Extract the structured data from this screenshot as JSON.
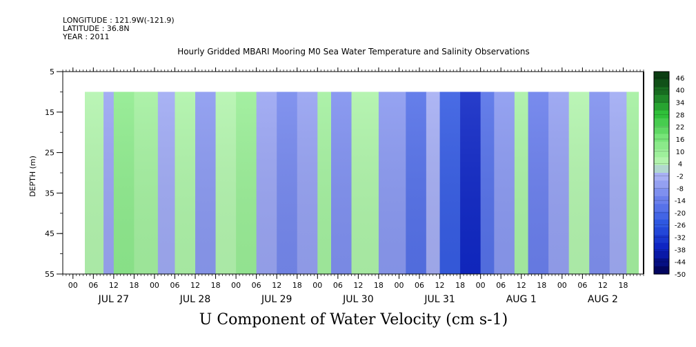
{
  "header": {
    "longitude": "LONGITUDE : 121.9W(-121.9)",
    "latitude": "LATITUDE : 36.8N",
    "year": "YEAR : 2011"
  },
  "chart_data": {
    "type": "heatmap",
    "title": "Hourly Gridded MBARI Mooring M0 Sea Water Temperature and Salinity Observations",
    "variable_title": "U Component of Water Velocity (cm s-1)",
    "ylabel": "DEPTH (m)",
    "y_reversed": true,
    "ylim": [
      5,
      55
    ],
    "y_ticks": [
      5,
      15,
      25,
      35,
      45,
      55
    ],
    "data_depth_range": [
      10,
      55
    ],
    "x_hour_ticks": [
      "00",
      "06",
      "12",
      "18",
      "00",
      "06",
      "12",
      "18",
      "00",
      "06",
      "12",
      "18",
      "00",
      "06",
      "12",
      "18",
      "00",
      "06",
      "12",
      "18",
      "00",
      "06",
      "12",
      "18",
      "00",
      "06",
      "12",
      "18"
    ],
    "day_labels": [
      "JUL 27",
      "JUL 28",
      "JUL 29",
      "JUL 30",
      "JUL 31",
      "AUG  1",
      "AUG  2"
    ],
    "data_time_range_hours": [
      3.5,
      166.5
    ],
    "colorbar": {
      "levels": [
        46,
        40,
        34,
        28,
        22,
        16,
        10,
        4,
        -2,
        -8,
        -14,
        -20,
        -26,
        -32,
        -38,
        -44,
        -50
      ],
      "color_stops": [
        {
          "value": -50,
          "color": "#00004d"
        },
        {
          "value": -38,
          "color": "#0b1fbf"
        },
        {
          "value": -26,
          "color": "#2b55e0"
        },
        {
          "value": -14,
          "color": "#6a7fec"
        },
        {
          "value": -2,
          "color": "#aab2f4"
        },
        {
          "value": 4,
          "color": "#b8f5b2"
        },
        {
          "value": 16,
          "color": "#7be67c"
        },
        {
          "value": 28,
          "color": "#30c03a"
        },
        {
          "value": 46,
          "color": "#0b3d12"
        }
      ]
    },
    "bands": [
      {
        "t0": 3.5,
        "t1": 9,
        "value": 5
      },
      {
        "t0": 9,
        "t1": 12,
        "value": -5
      },
      {
        "t0": 12,
        "t1": 18,
        "value": 12
      },
      {
        "t0": 18,
        "t1": 25,
        "value": 8
      },
      {
        "t0": 25,
        "t1": 30,
        "value": -4
      },
      {
        "t0": 30,
        "t1": 36,
        "value": 6
      },
      {
        "t0": 36,
        "t1": 42,
        "value": -8
      },
      {
        "t0": 42,
        "t1": 48,
        "value": 5
      },
      {
        "t0": 48,
        "t1": 54,
        "value": 10
      },
      {
        "t0": 54,
        "t1": 60,
        "value": -5
      },
      {
        "t0": 60,
        "t1": 66,
        "value": -12
      },
      {
        "t0": 66,
        "t1": 72,
        "value": -6
      },
      {
        "t0": 72,
        "t1": 76,
        "value": 8
      },
      {
        "t0": 76,
        "t1": 82,
        "value": -10
      },
      {
        "t0": 82,
        "t1": 90,
        "value": 6
      },
      {
        "t0": 90,
        "t1": 98,
        "value": -8
      },
      {
        "t0": 98,
        "t1": 104,
        "value": -18
      },
      {
        "t0": 104,
        "t1": 108,
        "value": -3
      },
      {
        "t0": 108,
        "t1": 114,
        "value": -24
      },
      {
        "t0": 114,
        "t1": 120,
        "value": -36
      },
      {
        "t0": 120,
        "t1": 124,
        "value": -18
      },
      {
        "t0": 124,
        "t1": 130,
        "value": -8
      },
      {
        "t0": 130,
        "t1": 134,
        "value": 7
      },
      {
        "t0": 134,
        "t1": 140,
        "value": -14
      },
      {
        "t0": 140,
        "t1": 146,
        "value": -6
      },
      {
        "t0": 146,
        "t1": 152,
        "value": 5
      },
      {
        "t0": 152,
        "t1": 158,
        "value": -10
      },
      {
        "t0": 158,
        "t1": 163,
        "value": -4
      },
      {
        "t0": 163,
        "t1": 166.5,
        "value": 8
      }
    ]
  }
}
